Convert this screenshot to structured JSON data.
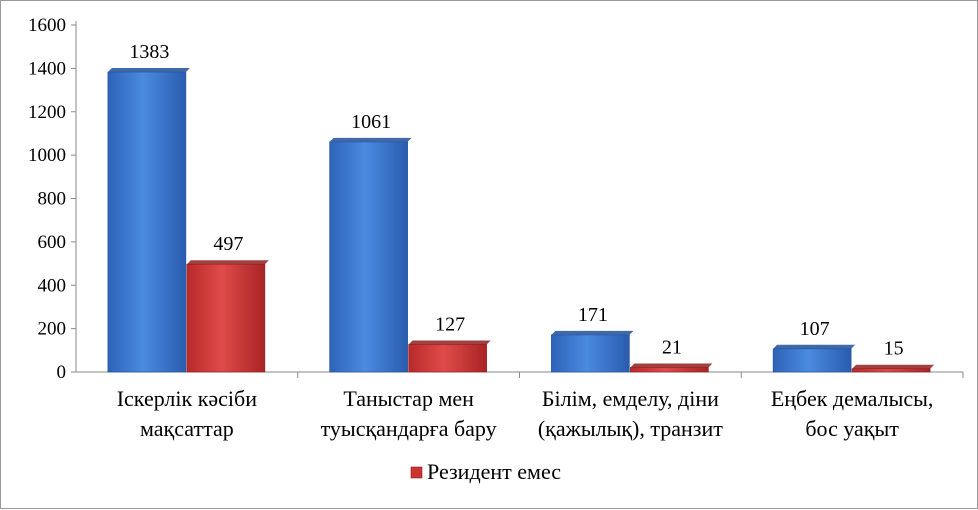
{
  "chart_data": {
    "type": "bar",
    "categories": [
      [
        "Іскерлік кәсіби",
        "мақсаттар"
      ],
      [
        "Таныстар мен",
        "туысқандарға бару"
      ],
      [
        "Білім,  емделу, діни",
        "(қажылық), транзит"
      ],
      [
        "Еңбек демалысы,",
        "бос уақыт"
      ]
    ],
    "series": [
      {
        "values": [
          1383,
          1061,
          171,
          107
        ],
        "color": "#3a78d0"
      },
      {
        "name": "Резидент емес",
        "values": [
          497,
          127,
          21,
          15
        ],
        "color": "#cc3333"
      }
    ],
    "ylim": [
      0,
      1600
    ],
    "yticks": [
      "0",
      "200",
      "400",
      "600",
      "800",
      "1000",
      "1200",
      "1400",
      "1600"
    ],
    "grid": false,
    "legend": {
      "position": "bottom",
      "entries": [
        "Резидент емес"
      ]
    }
  }
}
